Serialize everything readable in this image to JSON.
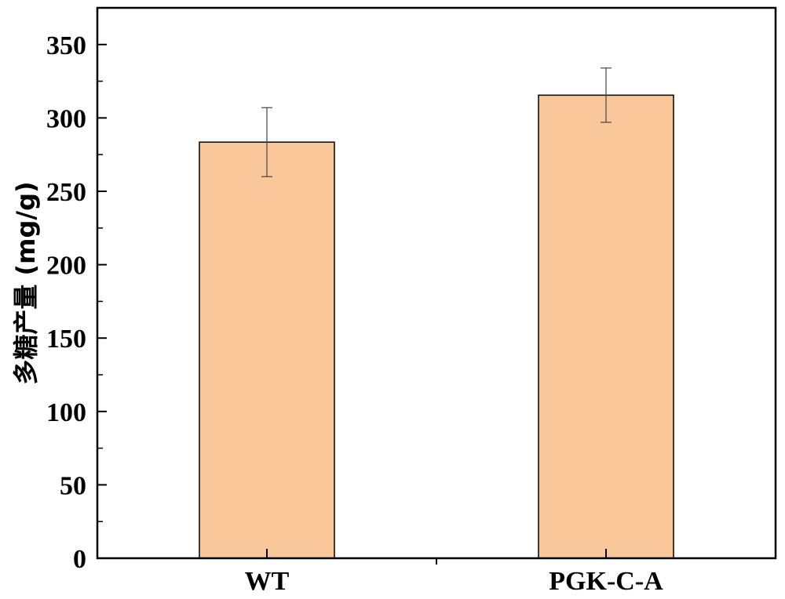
{
  "chart_data": {
    "type": "bar",
    "title": "",
    "xlabel": "",
    "ylabel": "多糖产量 (mg/g)",
    "categories": [
      "WT",
      "PGK-C-A"
    ],
    "values": [
      283.5,
      315.5
    ],
    "errors": [
      23.5,
      18.5
    ],
    "ylim": [
      0,
      375
    ],
    "yticks": [
      0,
      50,
      100,
      150,
      200,
      250,
      300,
      350
    ],
    "ytick_labels": [
      "0",
      "50",
      "100",
      "150",
      "200",
      "250",
      "300",
      "350"
    ],
    "bar_color": "#f9c79a",
    "grid": false,
    "legend": "none"
  }
}
